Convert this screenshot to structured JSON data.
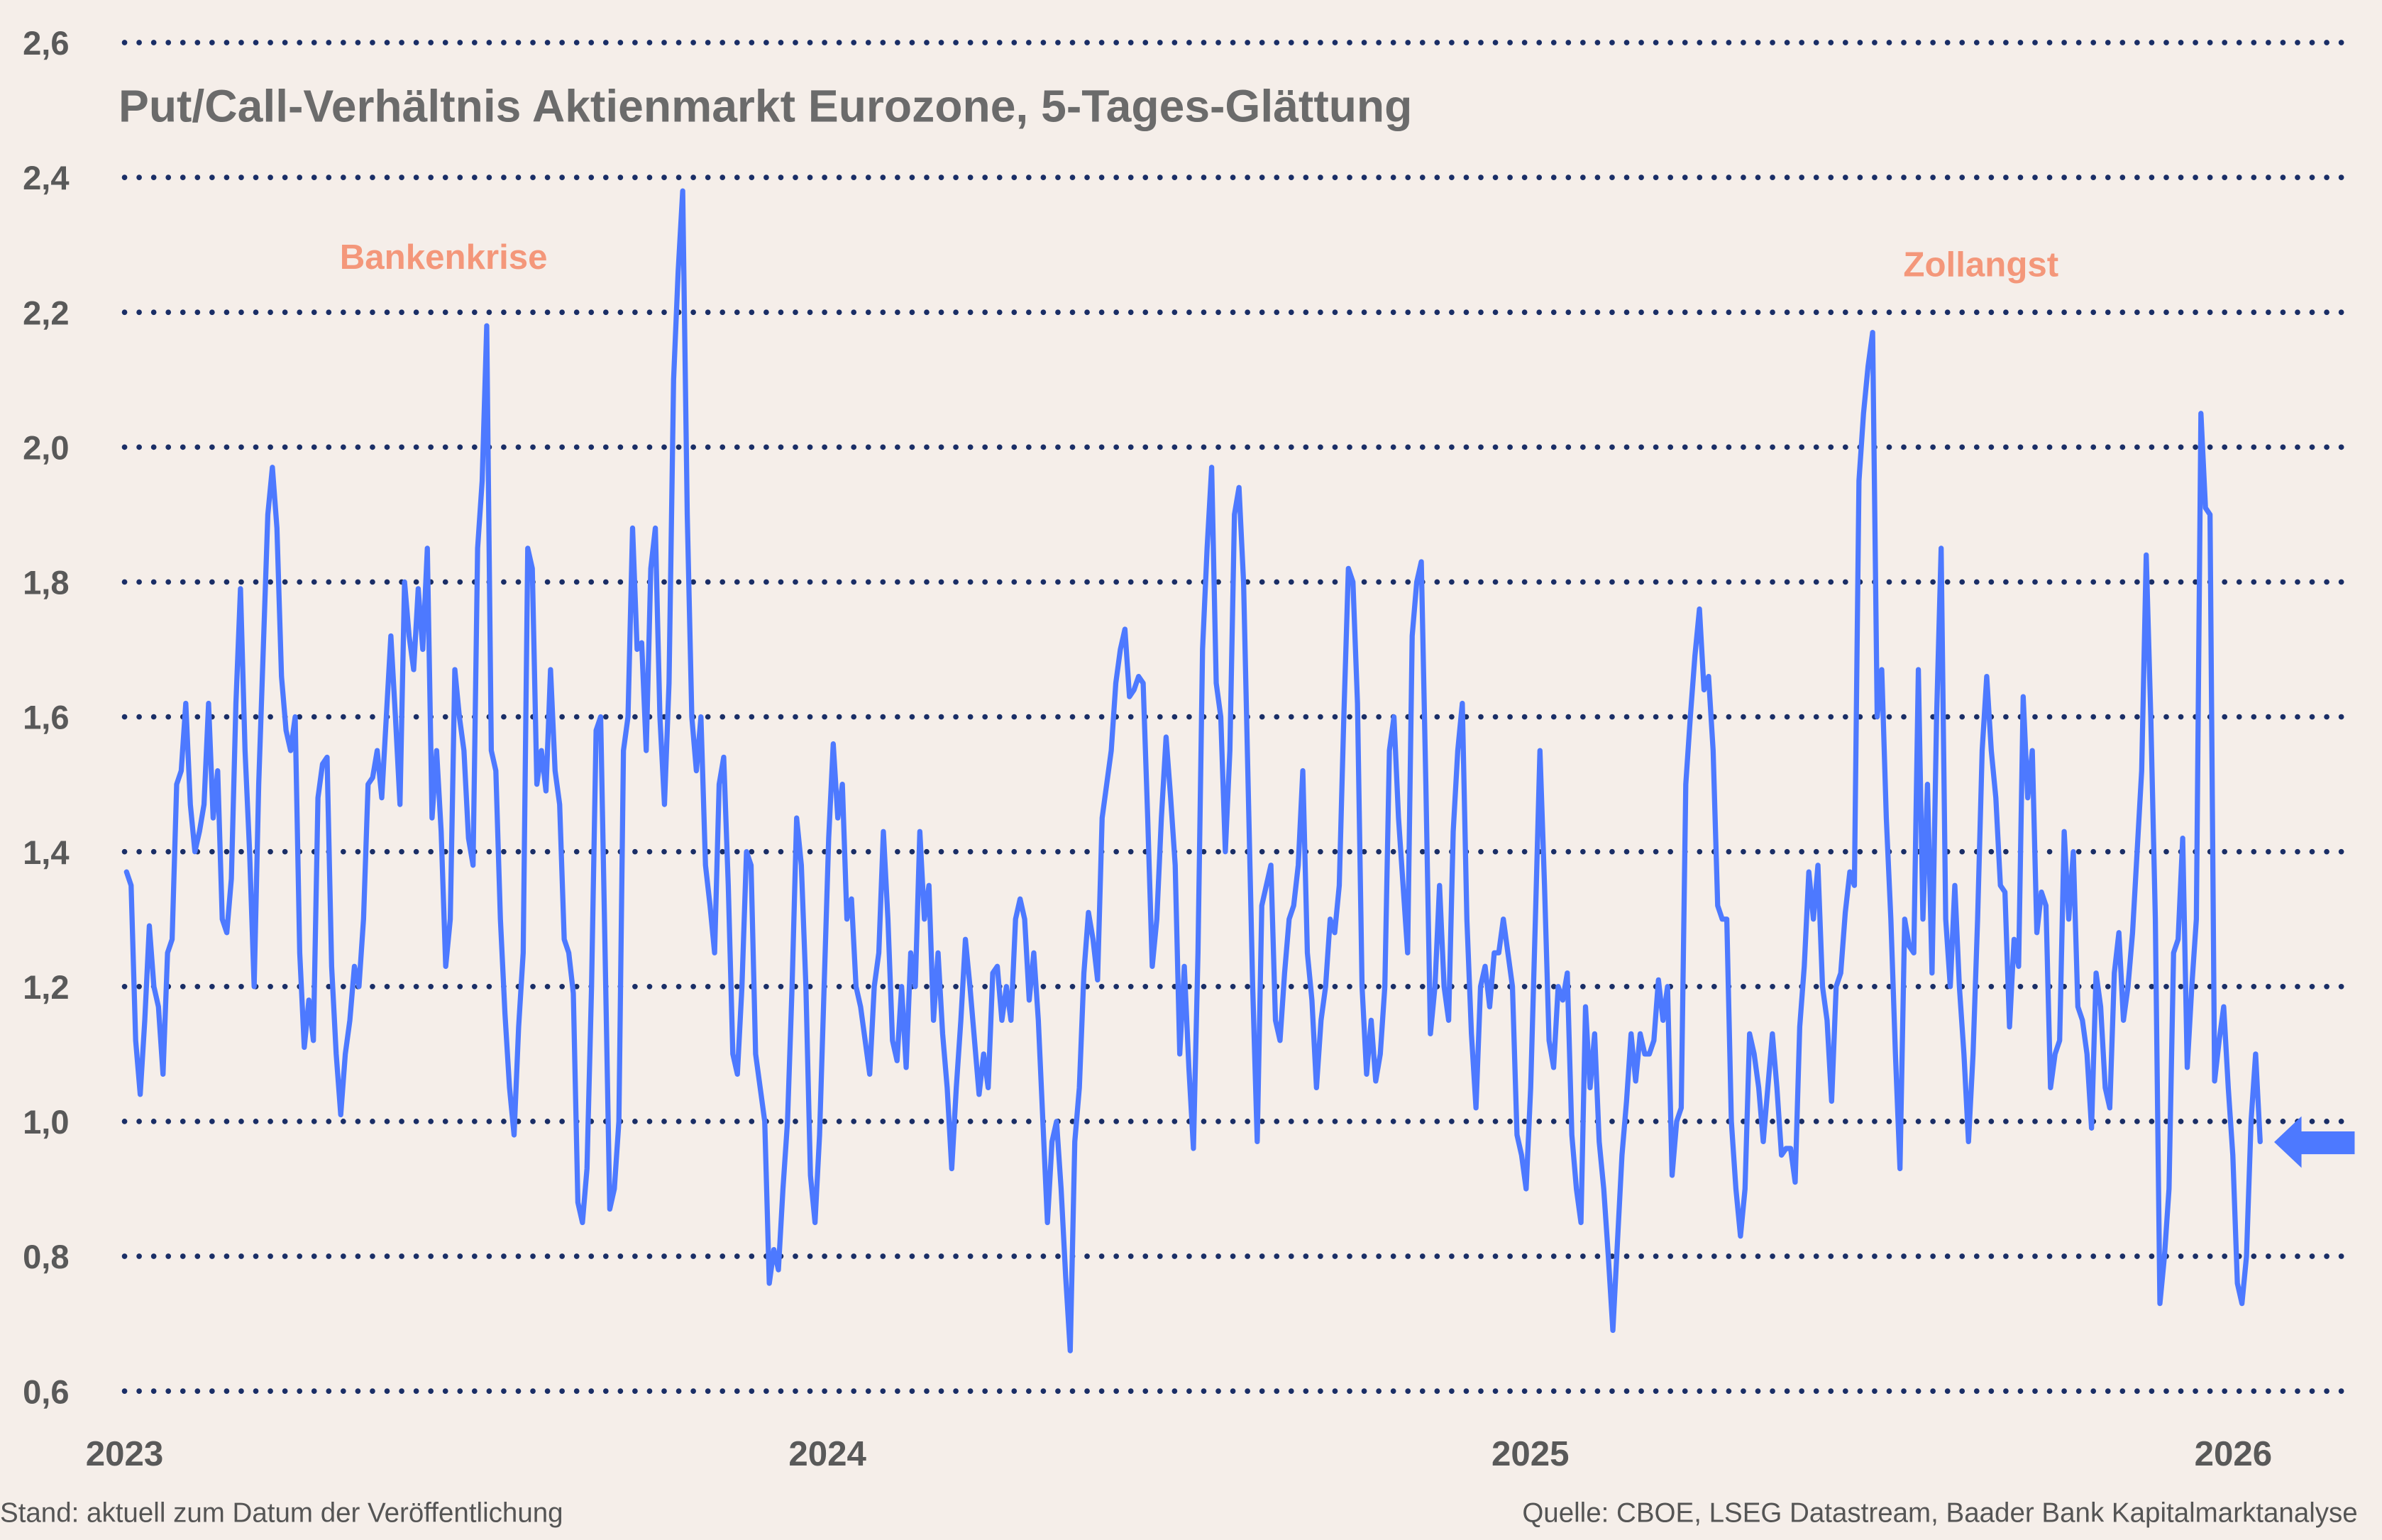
{
  "chart_data": {
    "type": "line",
    "title": "Put/Call-Verhältnis Aktienmarkt Eurozone, 5-Tages-Glättung",
    "xlabel": "",
    "ylabel": "",
    "ylim": [
      0.6,
      2.6
    ],
    "yticks": [
      "0,6",
      "0,8",
      "1,0",
      "1,2",
      "1,4",
      "1,6",
      "1,8",
      "2,0",
      "2,2",
      "2,4",
      "2,6"
    ],
    "xticks": [
      "2023",
      "2024",
      "2025",
      "2026"
    ],
    "xlim": [
      2023.0,
      2026.15
    ],
    "grid": "horizontal dotted",
    "x_first": "2023-01-02",
    "x_last": "2026-01-15",
    "line_color": "#4d79ff",
    "grid_color": "#1a2e66",
    "annotation_color": "#f4977a",
    "annotations": [
      {
        "text": "Bankenkrise",
        "x": 2023.45
      },
      {
        "text": "Zollangst",
        "x": 2025.6
      }
    ],
    "current_marker": {
      "icon": "arrow-left-icon",
      "value": 0.97
    },
    "series": [
      {
        "values": [
          1.37,
          1.35,
          1.12,
          1.04,
          1.15,
          1.29,
          1.2,
          1.17,
          1.07,
          1.25,
          1.27,
          1.5,
          1.52,
          1.62,
          1.47,
          1.4,
          1.43,
          1.47,
          1.62,
          1.45,
          1.52,
          1.3,
          1.28,
          1.36,
          1.62,
          1.79,
          1.55,
          1.4,
          1.2,
          1.5,
          1.7,
          1.9,
          1.97,
          1.88,
          1.66,
          1.58,
          1.55,
          1.6,
          1.25,
          1.11,
          1.18,
          1.12,
          1.48,
          1.53,
          1.54,
          1.23,
          1.1,
          1.01,
          1.1,
          1.15,
          1.23,
          1.2,
          1.3,
          1.5,
          1.51,
          1.55,
          1.48,
          1.6,
          1.72,
          1.6,
          1.47,
          1.8,
          1.72,
          1.67,
          1.79,
          1.7,
          1.85,
          1.45,
          1.55,
          1.43,
          1.23,
          1.3,
          1.67,
          1.6,
          1.55,
          1.42,
          1.38,
          1.85,
          1.95,
          2.18,
          1.55,
          1.52,
          1.3,
          1.16,
          1.05,
          0.98,
          1.14,
          1.25,
          1.85,
          1.82,
          1.5,
          1.55,
          1.49,
          1.67,
          1.52,
          1.47,
          1.27,
          1.25,
          1.19,
          0.88,
          0.85,
          0.93,
          1.2,
          1.58,
          1.6,
          1.24,
          0.87,
          0.9,
          1.0,
          1.55,
          1.6,
          1.88,
          1.7,
          1.71,
          1.55,
          1.82,
          1.88,
          1.6,
          1.47,
          1.65,
          2.1,
          2.26,
          2.38,
          1.9,
          1.6,
          1.52,
          1.6,
          1.38,
          1.32,
          1.25,
          1.5,
          1.54,
          1.35,
          1.1,
          1.07,
          1.2,
          1.4,
          1.38,
          1.1,
          1.05,
          1.0,
          0.76,
          0.81,
          0.78,
          0.9,
          1.0,
          1.2,
          1.45,
          1.38,
          1.2,
          0.92,
          0.85,
          0.98,
          1.2,
          1.42,
          1.56,
          1.45,
          1.5,
          1.3,
          1.33,
          1.2,
          1.17,
          1.12,
          1.07,
          1.2,
          1.25,
          1.43,
          1.3,
          1.12,
          1.09,
          1.2,
          1.08,
          1.25,
          1.2,
          1.43,
          1.3,
          1.35,
          1.15,
          1.25,
          1.13,
          1.05,
          0.93,
          1.05,
          1.15,
          1.27,
          1.2,
          1.12,
          1.04,
          1.1,
          1.05,
          1.22,
          1.23,
          1.15,
          1.2,
          1.15,
          1.3,
          1.33,
          1.3,
          1.18,
          1.25,
          1.15,
          1.0,
          0.85,
          0.97,
          1.0,
          0.9,
          0.77,
          0.66,
          0.97,
          1.05,
          1.22,
          1.31,
          1.27,
          1.21,
          1.45,
          1.5,
          1.55,
          1.65,
          1.7,
          1.73,
          1.63,
          1.64,
          1.66,
          1.65,
          1.45,
          1.23,
          1.3,
          1.45,
          1.57,
          1.48,
          1.38,
          1.1,
          1.23,
          1.08,
          0.96,
          1.25,
          1.7,
          1.85,
          1.97,
          1.65,
          1.6,
          1.4,
          1.55,
          1.9,
          1.94,
          1.8,
          1.5,
          1.2,
          0.97,
          1.32,
          1.35,
          1.38,
          1.15,
          1.12,
          1.22,
          1.3,
          1.32,
          1.38,
          1.52,
          1.25,
          1.18,
          1.05,
          1.15,
          1.2,
          1.3,
          1.28,
          1.35,
          1.6,
          1.82,
          1.8,
          1.62,
          1.2,
          1.07,
          1.15,
          1.06,
          1.1,
          1.2,
          1.55,
          1.6,
          1.45,
          1.35,
          1.25,
          1.72,
          1.8,
          1.83,
          1.5,
          1.13,
          1.2,
          1.35,
          1.2,
          1.15,
          1.43,
          1.55,
          1.62,
          1.3,
          1.13,
          1.02,
          1.2,
          1.23,
          1.17,
          1.25,
          1.25,
          1.3,
          1.25,
          1.2,
          0.98,
          0.95,
          0.9,
          1.05,
          1.3,
          1.55,
          1.35,
          1.12,
          1.08,
          1.2,
          1.18,
          1.22,
          0.98,
          0.9,
          0.85,
          1.17,
          1.05,
          1.13,
          0.97,
          0.9,
          0.8,
          0.69,
          0.82,
          0.95,
          1.03,
          1.13,
          1.06,
          1.13,
          1.1,
          1.1,
          1.12,
          1.21,
          1.15,
          1.2,
          0.92,
          1.0,
          1.02,
          1.5,
          1.6,
          1.69,
          1.76,
          1.64,
          1.66,
          1.55,
          1.32,
          1.3,
          1.3,
          1.0,
          0.9,
          0.83,
          0.9,
          1.13,
          1.1,
          1.05,
          0.97,
          1.05,
          1.13,
          1.05,
          0.95,
          0.96,
          0.96,
          0.91,
          1.14,
          1.23,
          1.37,
          1.3,
          1.38,
          1.2,
          1.15,
          1.03,
          1.2,
          1.22,
          1.31,
          1.37,
          1.35,
          1.95,
          2.05,
          2.12,
          2.17,
          1.6,
          1.67,
          1.45,
          1.3,
          1.1,
          0.93,
          1.3,
          1.26,
          1.25,
          1.67,
          1.3,
          1.5,
          1.22,
          1.6,
          1.85,
          1.3,
          1.2,
          1.35,
          1.2,
          1.1,
          0.97,
          1.1,
          1.3,
          1.55,
          1.66,
          1.55,
          1.48,
          1.35,
          1.34,
          1.14,
          1.27,
          1.23,
          1.63,
          1.48,
          1.55,
          1.28,
          1.34,
          1.32,
          1.05,
          1.1,
          1.12,
          1.43,
          1.3,
          1.4,
          1.17,
          1.15,
          1.1,
          0.99,
          1.22,
          1.17,
          1.05,
          1.02,
          1.22,
          1.28,
          1.15,
          1.2,
          1.28,
          1.4,
          1.52,
          1.84,
          1.6,
          1.3,
          0.73,
          0.8,
          0.9,
          1.25,
          1.27,
          1.42,
          1.08,
          1.2,
          1.3,
          2.05,
          1.91,
          1.9,
          1.06,
          1.12,
          1.17,
          1.05,
          0.95,
          0.76,
          0.73,
          0.8,
          1.0,
          1.1,
          0.97
        ]
      }
    ]
  },
  "footer": {
    "left": "Stand: aktuell zum Datum der Veröffentlichung",
    "right": "Quelle: CBOE, LSEG Datastream, Baader Bank Kapitalmarktanalyse"
  }
}
